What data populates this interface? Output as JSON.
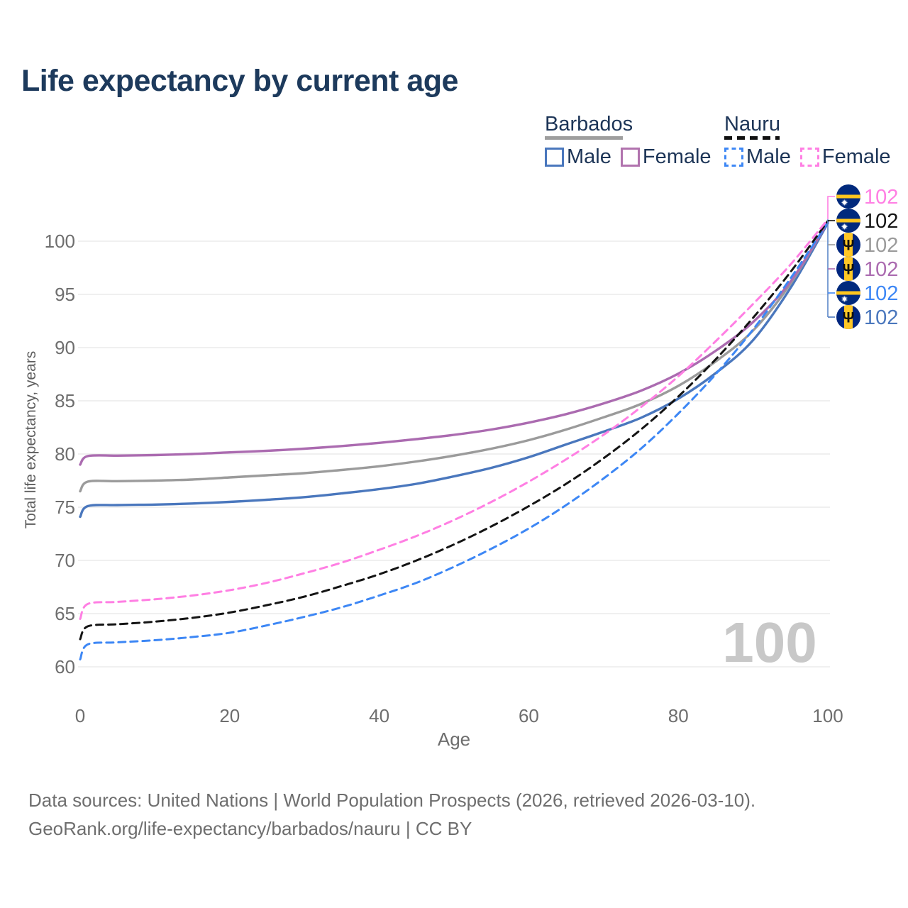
{
  "title": "Life expectancy by current age",
  "watermark": "100",
  "footer": {
    "line1": "Data sources: United Nations | World Population Prospects (2026, retrieved 2026-03-10).",
    "line2": "GeoRank.org/life-expectancy/barbados/nauru | CC BY"
  },
  "legend": {
    "groups": [
      {
        "label": "Barbados",
        "line_style": "solid",
        "underline_color": "#9e9e9e",
        "items": [
          {
            "label": "Male",
            "color": "#4a77bd"
          },
          {
            "label": "Female",
            "color": "#b173ae"
          }
        ]
      },
      {
        "label": "Nauru",
        "line_style": "dashed",
        "underline_color": "#111111",
        "items": [
          {
            "label": "Male",
            "color": "#3d87f5"
          },
          {
            "label": "Female",
            "color": "#ff7fe3"
          }
        ]
      }
    ]
  },
  "chart_data": {
    "type": "line",
    "title": "Life expectancy by current age",
    "xlabel": "Age",
    "ylabel": "Total life expectancy, years",
    "x_ticks": [
      0,
      20,
      40,
      60,
      80,
      100
    ],
    "y_ticks": [
      60,
      65,
      70,
      75,
      80,
      85,
      90,
      95,
      100
    ],
    "xlim": [
      0,
      100
    ],
    "ylim_gridlines": [
      60,
      100
    ],
    "grid": "horizontal-only",
    "legend_position": "top-right",
    "ages": [
      0,
      1,
      5,
      10,
      15,
      20,
      25,
      30,
      35,
      40,
      45,
      50,
      55,
      60,
      65,
      70,
      75,
      80,
      85,
      90,
      95,
      100
    ],
    "series": [
      {
        "name": "Barbados Male",
        "country": "Barbados",
        "sex": "Male",
        "style": "solid",
        "color": "#4a77bd",
        "values": [
          74.1,
          75.1,
          75.2,
          75.25,
          75.35,
          75.5,
          75.7,
          75.95,
          76.3,
          76.7,
          77.2,
          77.9,
          78.7,
          79.7,
          80.9,
          82.1,
          83.4,
          85.2,
          87.6,
          90.7,
          95.6,
          101.7
        ]
      },
      {
        "name": "Barbados",
        "country": "Barbados",
        "sex": "Both",
        "style": "solid",
        "color": "#9b9b9b",
        "values": [
          76.5,
          77.4,
          77.45,
          77.5,
          77.6,
          77.8,
          78.0,
          78.2,
          78.5,
          78.85,
          79.3,
          79.85,
          80.5,
          81.3,
          82.3,
          83.45,
          84.7,
          86.4,
          88.7,
          91.6,
          96.0,
          101.85
        ]
      },
      {
        "name": "Barbados Female",
        "country": "Barbados",
        "sex": "Female",
        "style": "solid",
        "color": "#ab6bb0",
        "values": [
          79.0,
          79.8,
          79.85,
          79.9,
          80.0,
          80.15,
          80.3,
          80.5,
          80.75,
          81.05,
          81.4,
          81.8,
          82.3,
          82.95,
          83.75,
          84.75,
          85.95,
          87.55,
          89.7,
          92.4,
          96.2,
          101.8
        ]
      },
      {
        "name": "Nauru Male",
        "country": "Nauru",
        "sex": "Male",
        "style": "dashed",
        "color": "#3d87f5",
        "values": [
          60.7,
          62.1,
          62.3,
          62.5,
          62.8,
          63.2,
          63.9,
          64.7,
          65.6,
          66.7,
          67.9,
          69.4,
          71.1,
          73.0,
          75.2,
          77.7,
          80.5,
          83.8,
          87.5,
          91.7,
          96.5,
          101.75
        ]
      },
      {
        "name": "Nauru",
        "country": "Nauru",
        "sex": "Both",
        "style": "dashed",
        "color": "#141414",
        "values": [
          62.6,
          63.8,
          64.0,
          64.25,
          64.6,
          65.1,
          65.8,
          66.6,
          67.6,
          68.7,
          70.0,
          71.5,
          73.2,
          75.1,
          77.2,
          79.6,
          82.3,
          85.4,
          88.9,
          92.8,
          97.1,
          101.9
        ]
      },
      {
        "name": "Nauru Female",
        "country": "Nauru",
        "sex": "Female",
        "style": "dashed",
        "color": "#ff7fe3",
        "values": [
          64.5,
          65.9,
          66.1,
          66.35,
          66.7,
          67.2,
          67.9,
          68.8,
          69.8,
          71.0,
          72.3,
          73.8,
          75.5,
          77.4,
          79.5,
          81.8,
          84.4,
          87.3,
          90.6,
          94.1,
          97.8,
          102.05
        ]
      }
    ],
    "end_labels": [
      {
        "series": "Nauru Female",
        "flag": "nauru",
        "value": "102",
        "color": "#ff7fe3"
      },
      {
        "series": "Nauru",
        "flag": "nauru",
        "value": "102",
        "color": "#141414"
      },
      {
        "series": "Barbados",
        "flag": "barbados",
        "value": "102",
        "color": "#9b9b9b"
      },
      {
        "series": "Barbados Female",
        "flag": "barbados",
        "value": "102",
        "color": "#ab6bb0"
      },
      {
        "series": "Nauru Male",
        "flag": "nauru",
        "value": "102",
        "color": "#3d87f5"
      },
      {
        "series": "Barbados Male",
        "flag": "barbados",
        "value": "102",
        "color": "#4a77bd"
      }
    ],
    "flag_colors": {
      "barbados": {
        "blue": "#00267F",
        "gold": "#FFC726",
        "trident": "#111111"
      },
      "nauru": {
        "blue": "#012A7D",
        "stripe": "#FFC61E",
        "star": "#ffffff"
      }
    }
  }
}
